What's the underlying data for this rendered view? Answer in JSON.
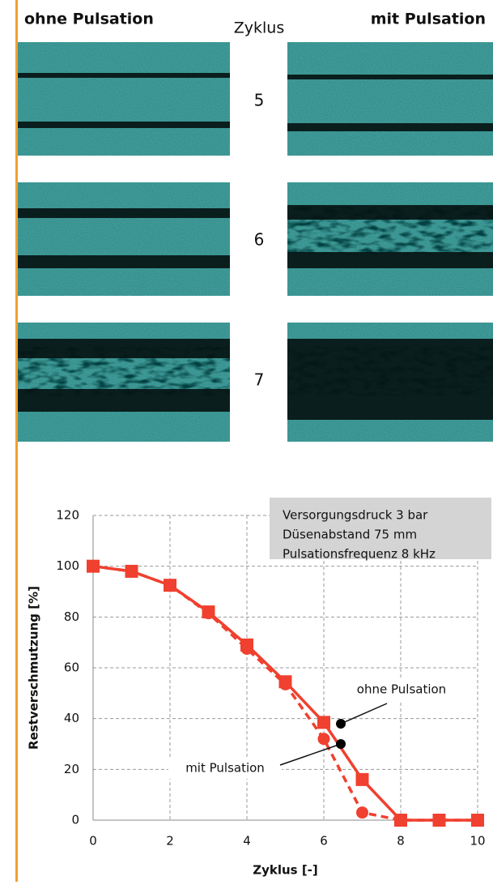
{
  "figure": {
    "left_header": "ohne Pulsation",
    "center_header": "Zyklus",
    "right_header": "mit Pulsation",
    "cycles": [
      "5",
      "6",
      "7"
    ]
  },
  "chart_data": {
    "type": "line",
    "x_label": "Zyklus [-]",
    "y_label": "Restverschmutzung [%]",
    "x": [
      0,
      1,
      2,
      3,
      4,
      5,
      6,
      7,
      8,
      9,
      10
    ],
    "series": [
      {
        "name": "ohne Pulsation",
        "color": "#f0402f",
        "marker": "square",
        "dashed": false,
        "values": [
          100,
          98,
          92.5,
          82,
          69,
          54.5,
          38.5,
          16,
          0,
          0,
          0
        ]
      },
      {
        "name": "mit Pulsation",
        "color": "#f0402f",
        "marker": "circle",
        "dashed": true,
        "values": [
          100,
          98,
          92.5,
          81.5,
          67.5,
          53.5,
          32,
          3,
          0,
          0,
          0
        ]
      }
    ],
    "xlim": [
      0,
      10
    ],
    "ylim": [
      0,
      120
    ],
    "xticks": [
      0,
      2,
      4,
      6,
      8,
      10
    ],
    "yticks": [
      0,
      20,
      40,
      60,
      80,
      100,
      120
    ],
    "grid": true,
    "info_box": [
      "Versorgungsdruck 3 bar",
      "Düsenabstand 75 mm",
      "Pulsationsfrequenz 8 kHz"
    ]
  }
}
